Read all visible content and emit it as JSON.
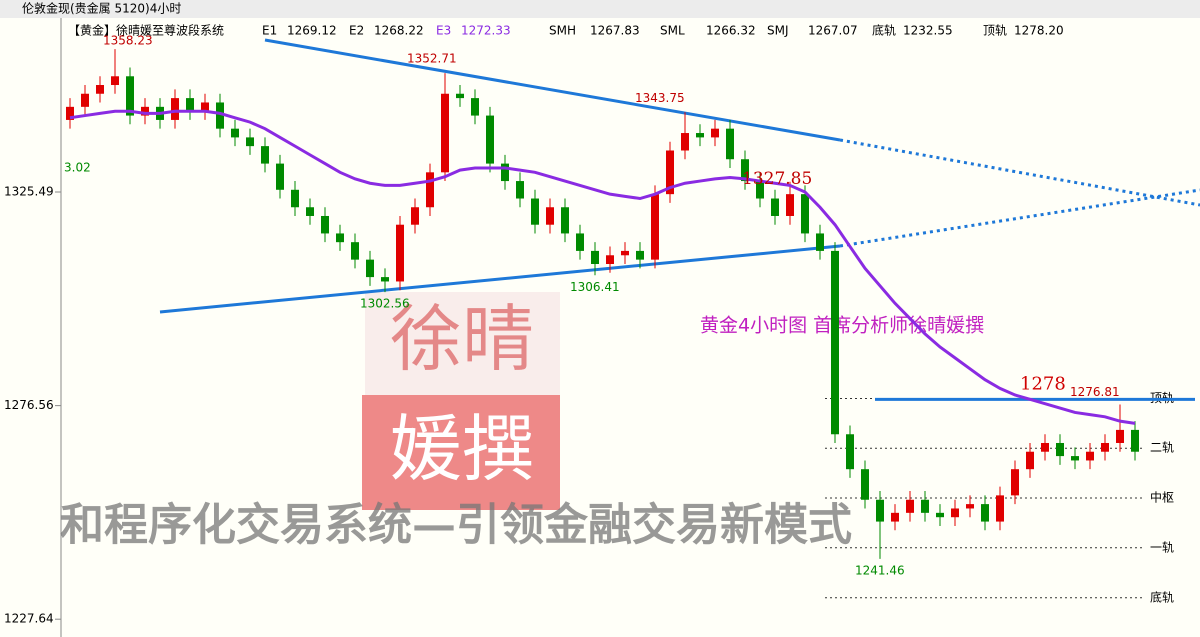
{
  "chart_data": {
    "type": "candlestick",
    "title": "伦敦金现(贵金属 5120)4小时",
    "indicator_label": "【黄金】徐晴媛至尊波段系统",
    "indicators": [
      {
        "name": "E1",
        "value": 1269.12
      },
      {
        "name": "E2",
        "value": 1268.22
      },
      {
        "name": "E3",
        "value": 1272.33
      },
      {
        "name": "SMH",
        "value": 1267.83
      },
      {
        "name": "SML",
        "value": 1266.32
      },
      {
        "name": "SMJ",
        "value": 1267.07
      },
      {
        "name": "底轨",
        "value": 1232.55
      },
      {
        "name": "顶轨",
        "value": {
          "value": 1278.2,
          "label": "1278.20"
        }
      }
    ],
    "up_color": "#e00000",
    "down_color": "#008a00",
    "open": [
      1342,
      1345,
      1348,
      1350,
      1352,
      1343,
      1345,
      1342,
      1347,
      1344,
      1346,
      1340,
      1338,
      1336,
      1332,
      1326,
      1322,
      1320,
      1316,
      1314,
      1310,
      1306,
      1305,
      1318,
      1322,
      1330,
      1348,
      1347,
      1343,
      1332,
      1328,
      1324,
      1318,
      1322,
      1316,
      1312,
      1309,
      1311,
      1312,
      1310,
      1325,
      1335,
      1339,
      1338,
      1340,
      1333,
      1328,
      1324,
      1320,
      1325,
      1316,
      1312,
      1270,
      1262,
      1255,
      1250,
      1252,
      1255,
      1252,
      1251,
      1253,
      1254,
      1250,
      1256,
      1262,
      1266,
      1268,
      1265,
      1264,
      1266,
      1268,
      1271
    ],
    "high": [
      1347,
      1350,
      1352,
      1358.23,
      1354,
      1347,
      1347,
      1349,
      1349,
      1348,
      1348,
      1342,
      1340,
      1338,
      1334,
      1328,
      1324,
      1322,
      1318,
      1316,
      1312,
      1308,
      1320,
      1324,
      1332,
      1352.71,
      1350,
      1349,
      1345,
      1334,
      1330,
      1326,
      1324,
      1324,
      1318,
      1314,
      1313,
      1314,
      1314,
      1327,
      1337,
      1343.75,
      1341,
      1342,
      1342,
      1335,
      1330,
      1326,
      1327.85,
      1327,
      1318,
      1314,
      1272,
      1264,
      1257,
      1254,
      1257,
      1257,
      1254,
      1255,
      1256,
      1256,
      1258,
      1264,
      1268,
      1270,
      1270,
      1267,
      1268,
      1270,
      1276.81,
      1273
    ],
    "low": [
      1340,
      1343,
      1346,
      1348,
      1341,
      1341,
      1340,
      1340,
      1342,
      1342,
      1338,
      1336,
      1334,
      1330,
      1324,
      1320,
      1318,
      1314,
      1312,
      1308,
      1304,
      1302.56,
      1303,
      1316,
      1320,
      1328,
      1345,
      1341,
      1330,
      1326,
      1322,
      1316,
      1316,
      1314,
      1310,
      1306.41,
      1307,
      1309,
      1308,
      1308,
      1323,
      1333,
      1336,
      1336,
      1331,
      1326,
      1322,
      1318,
      1318,
      1314,
      1310,
      1268,
      1260,
      1253,
      1241.46,
      1248,
      1250,
      1250,
      1249,
      1249,
      1251,
      1248,
      1248,
      1254,
      1260,
      1264,
      1263,
      1262,
      1262,
      1264,
      1266,
      1264
    ],
    "close": [
      1345,
      1348,
      1350,
      1352,
      1343,
      1345,
      1342,
      1347,
      1344,
      1346,
      1340,
      1338,
      1336,
      1332,
      1326,
      1322,
      1320,
      1316,
      1314,
      1310,
      1306,
      1305,
      1318,
      1322,
      1330,
      1348,
      1347,
      1343,
      1332,
      1328,
      1324,
      1318,
      1322,
      1316,
      1312,
      1309,
      1311,
      1312,
      1310,
      1325,
      1335,
      1339,
      1338,
      1340,
      1333,
      1328,
      1324,
      1320,
      1325,
      1316,
      1312,
      1270,
      1262,
      1255,
      1250,
      1252,
      1255,
      1252,
      1251,
      1253,
      1254,
      1250,
      1256,
      1262,
      1266,
      1268,
      1265,
      1264,
      1266,
      1268,
      1271,
      1266
    ],
    "ma": {
      "color": "#8a2be2",
      "values": [
        1342.5,
        1343,
        1343.5,
        1344,
        1344,
        1343.5,
        1343.5,
        1344,
        1344,
        1344,
        1343.5,
        1342.5,
        1341.5,
        1340,
        1338,
        1336,
        1334,
        1332,
        1330,
        1328.5,
        1327.5,
        1327,
        1327,
        1327.5,
        1328,
        1329,
        1330.5,
        1331,
        1331,
        1331,
        1330.5,
        1330,
        1329,
        1328,
        1327,
        1326,
        1325,
        1324.5,
        1324,
        1325,
        1326.5,
        1327.5,
        1328,
        1328.5,
        1328.8,
        1328.5,
        1328,
        1327.5,
        1327,
        1325.5,
        1322,
        1318,
        1313,
        1308,
        1304,
        1300,
        1296.5,
        1293,
        1290,
        1287.5,
        1285,
        1282.5,
        1280.5,
        1279,
        1278,
        1277,
        1276,
        1275,
        1274.5,
        1274,
        1273,
        1272.5
      ]
    },
    "ylim": [
      1223.56,
      1365.35
    ],
    "yticks": [
      1325.49,
      1276.56,
      1227.64
    ],
    "rails": [
      {
        "label": "顶轨",
        "value": 1278.2
      },
      {
        "label": "二轨",
        "value": 1266.8
      },
      {
        "label": "中枢",
        "value": 1255.4
      },
      {
        "label": "一轨",
        "value": 1244
      },
      {
        "label": "底轨",
        "value": 1232.55
      }
    ],
    "level": 1278,
    "annotations": [
      "3.02",
      "黄金4小时图  首席分析师徐晴媛撰"
    ],
    "stamp": [
      "徐晴",
      "媛撰"
    ],
    "watermark": "和程序化交易系统—引领金融交易新模式"
  }
}
